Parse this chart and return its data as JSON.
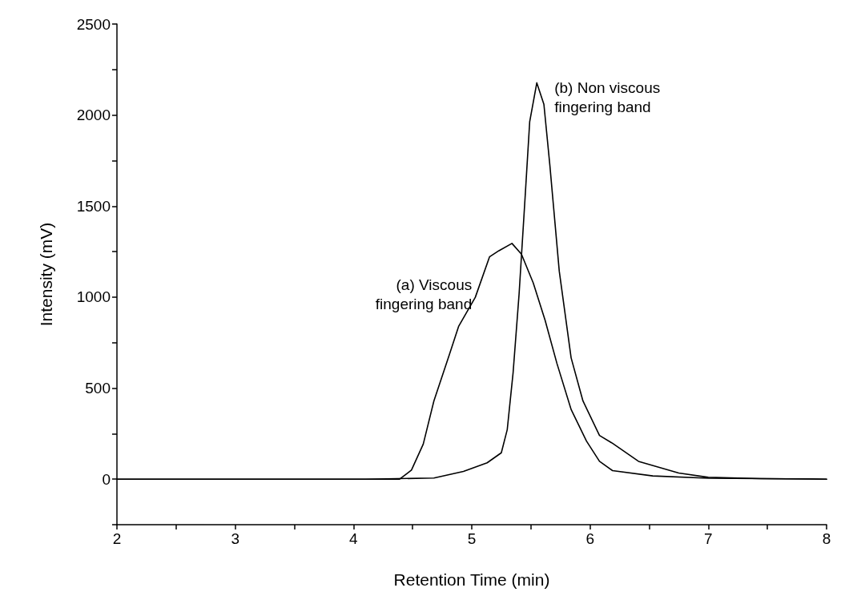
{
  "chart_data": {
    "type": "line",
    "xlabel": "Retention Time (min)",
    "ylabel": "Intensity (mV)",
    "xlim": [
      2,
      8
    ],
    "xticks": [
      2,
      {
        "value": 2.5,
        "label": null
      },
      3,
      {
        "value": 3.5,
        "label": null
      },
      4,
      {
        "value": 4.5,
        "label": null
      },
      5,
      {
        "value": 5.5,
        "label": null
      },
      6,
      {
        "value": 6.5,
        "label": null
      },
      7,
      {
        "value": 7.5,
        "label": null
      },
      8
    ],
    "ylim": [
      -250,
      2500
    ],
    "yticks": [
      {
        "value": -250,
        "label": null
      },
      0,
      {
        "value": 250,
        "label": null
      },
      500,
      {
        "value": 750,
        "label": null
      },
      1000,
      {
        "value": 1250,
        "label": null
      },
      1500,
      {
        "value": 1750,
        "label": null
      },
      2000,
      {
        "value": 2250,
        "label": null
      },
      2500
    ],
    "grid": false,
    "legend": false,
    "marker": "none",
    "line_style": "solid",
    "series": [
      {
        "name": "(a) Viscous\nfingering band",
        "color": "#000000",
        "x": [
          2,
          4.39,
          4.49,
          4.59,
          4.68,
          4.81,
          4.89,
          5.03,
          5.15,
          5.23,
          5.34,
          5.42,
          5.52,
          5.62,
          5.72,
          5.84,
          5.97,
          6.08,
          6.19,
          6.53,
          7.0,
          8
        ],
        "values": [
          0,
          0,
          50,
          193,
          430,
          683,
          841,
          999,
          1221,
          1255,
          1295,
          1236,
          1078,
          873,
          636,
          383,
          209,
          98,
          47,
          18,
          5,
          0
        ]
      },
      {
        "name": "(b) Non viscous\nfingering band",
        "color": "#000000",
        "x": [
          2,
          4.1,
          4.68,
          4.93,
          5.13,
          5.25,
          5.3,
          5.35,
          5.4,
          5.45,
          5.49,
          5.55,
          5.61,
          5.66,
          5.74,
          5.84,
          5.94,
          6.08,
          6.19,
          6.41,
          6.75,
          7.0,
          7.44,
          8
        ],
        "values": [
          0,
          0,
          6,
          43,
          90,
          145,
          272,
          588,
          1015,
          1537,
          1964,
          2177,
          2059,
          1727,
          1142,
          667,
          430,
          240,
          197,
          98,
          34,
          10,
          3,
          0
        ]
      }
    ]
  }
}
